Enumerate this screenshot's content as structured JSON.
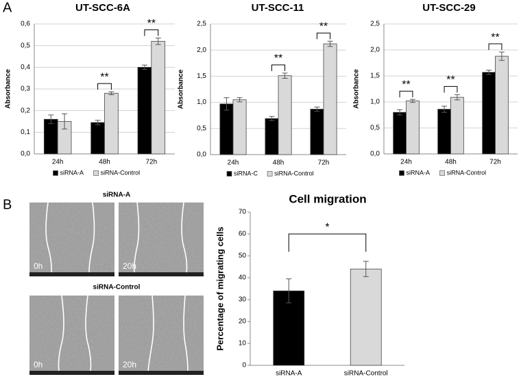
{
  "panel_labels": [
    "A",
    "B"
  ],
  "chart_data": [
    {
      "type": "bar",
      "title": "UT-SCC-6A",
      "y_label": "Absorbance",
      "categories": [
        "24h",
        "48h",
        "72h"
      ],
      "series": [
        {
          "name": "siRNA-A",
          "color": "#000000",
          "values": [
            0.16,
            0.145,
            0.4
          ],
          "errors": [
            0.02,
            0.01,
            0.01
          ]
        },
        {
          "name": "siRNA-Control",
          "color": "#d9d9d9",
          "values": [
            0.15,
            0.28,
            0.52
          ],
          "errors": [
            0.035,
            0.007,
            0.015
          ]
        }
      ],
      "significance": [
        null,
        "**",
        "**"
      ],
      "ylim": [
        0,
        0.6
      ],
      "yticks": [
        {
          "value": 0,
          "label": "0,0"
        },
        {
          "value": 0.1,
          "label": "0,1"
        },
        {
          "value": 0.2,
          "label": "0,2"
        },
        {
          "value": 0.3,
          "label": "0,3"
        },
        {
          "value": 0.4,
          "label": "0,4"
        },
        {
          "value": 0.5,
          "label": "0,5"
        },
        {
          "value": 0.6,
          "label": "0,6"
        }
      ],
      "grid": true,
      "legend": "bottom"
    },
    {
      "type": "bar",
      "title": "UT-SCC-11",
      "y_label": "Absorbance",
      "categories": [
        "24h",
        "48h",
        "72h"
      ],
      "series": [
        {
          "name": "siRNA-C",
          "color": "#000000",
          "values": [
            0.97,
            0.69,
            0.87
          ],
          "errors": [
            0.12,
            0.04,
            0.04
          ]
        },
        {
          "name": "siRNA-Control",
          "color": "#d9d9d9",
          "values": [
            1.05,
            1.51,
            2.12
          ],
          "errors": [
            0.04,
            0.05,
            0.05
          ]
        }
      ],
      "significance": [
        null,
        "**",
        "**"
      ],
      "ylim": [
        0,
        2.5
      ],
      "yticks": [
        {
          "value": 0,
          "label": "0,0"
        },
        {
          "value": 0.5,
          "label": "0,5"
        },
        {
          "value": 1,
          "label": "1,0"
        },
        {
          "value": 1.5,
          "label": "1,5"
        },
        {
          "value": 2,
          "label": "2,0"
        },
        {
          "value": 2.5,
          "label": "2,5"
        }
      ],
      "grid": true,
      "legend": "bottom"
    },
    {
      "type": "bar",
      "title": "UT-SCC-29",
      "y_label": "Absorbance",
      "categories": [
        "24h",
        "48h",
        "72h"
      ],
      "series": [
        {
          "name": "siRNA-A",
          "color": "#000000",
          "values": [
            0.8,
            0.86,
            1.57
          ],
          "errors": [
            0.05,
            0.06,
            0.04
          ]
        },
        {
          "name": "siRNA-Control",
          "color": "#d9d9d9",
          "values": [
            1.02,
            1.09,
            1.88
          ],
          "errors": [
            0.03,
            0.05,
            0.08
          ]
        }
      ],
      "significance": [
        "**",
        "**",
        "**"
      ],
      "ylim": [
        0,
        2.5
      ],
      "yticks": [
        {
          "value": 0,
          "label": "0,0"
        },
        {
          "value": 0.5,
          "label": "0,5"
        },
        {
          "value": 1,
          "label": "1,0"
        },
        {
          "value": 1.5,
          "label": "1,5"
        },
        {
          "value": 2,
          "label": "2,0"
        },
        {
          "value": 2.5,
          "label": "2,5"
        }
      ],
      "grid": true,
      "legend": "bottom"
    },
    {
      "type": "bar",
      "title": "Cell migration",
      "y_label": "Percentage of migrating cells",
      "categories": [
        "siRNA-A",
        "siRNA-Control"
      ],
      "values": [
        34,
        44
      ],
      "errors": [
        5.5,
        3.5
      ],
      "colors": [
        "#000000",
        "#d9d9d9"
      ],
      "comparison": "*",
      "ylim": [
        0,
        70
      ],
      "yticks": [
        0,
        10,
        20,
        30,
        40,
        50,
        60,
        70
      ],
      "grid": false
    }
  ],
  "images": [
    {
      "title": "siRNA-A",
      "frames": [
        "0h",
        "20h"
      ]
    },
    {
      "title": "siRNA-Control",
      "frames": [
        "0h",
        "20h"
      ]
    }
  ]
}
